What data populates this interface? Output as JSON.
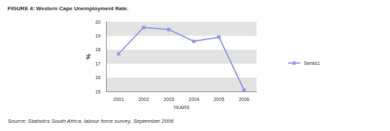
{
  "chart_data": {
    "type": "line",
    "title": "FIGURE 4: Western Cape Unemployment Rate.",
    "source": "Source: Statistics South Africa, labour force survey, September 2006",
    "x_label": "YEARS",
    "y_label": "%",
    "categories": [
      "2001",
      "2002",
      "2003",
      "2004",
      "2005",
      "2006"
    ],
    "series": [
      {
        "name": "Series1",
        "color": "#9a9ae6",
        "values": [
          17.7,
          19.6,
          19.45,
          18.6,
          18.9,
          15.1
        ]
      }
    ],
    "ylim": [
      15,
      20
    ],
    "yticks": [
      15,
      16,
      17,
      18,
      19,
      20
    ],
    "grid": true,
    "legend": "right",
    "marker": "square",
    "line_style": "solid"
  }
}
